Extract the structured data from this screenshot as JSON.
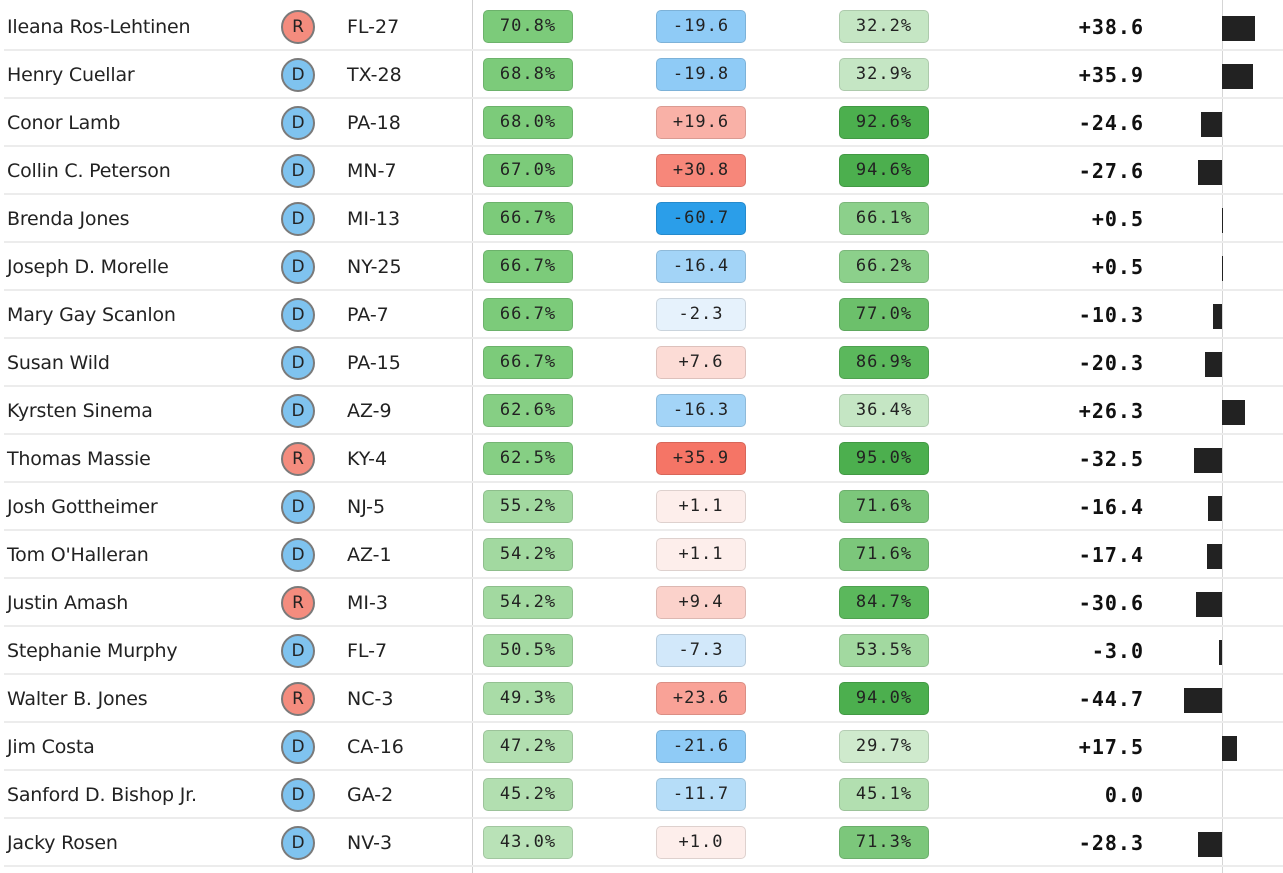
{
  "rows": [
    {
      "name": "Ileana Ros-Lehtinen",
      "party": "R",
      "district": "FL-27",
      "v1": "70.8%",
      "v2": "-19.6",
      "v3": "32.2%",
      "diff": "+38.6",
      "diff_value": 38.6,
      "c1": "#7ccb7a",
      "c2": "#8fcbf6",
      "c3": "#c5e6c4"
    },
    {
      "name": "Henry Cuellar",
      "party": "D",
      "district": "TX-28",
      "v1": "68.8%",
      "v2": "-19.8",
      "v3": "32.9%",
      "diff": "+35.9",
      "diff_value": 35.9,
      "c1": "#7ccb7a",
      "c2": "#8fcbf6",
      "c3": "#c5e6c4"
    },
    {
      "name": "Conor Lamb",
      "party": "D",
      "district": "PA-18",
      "v1": "68.0%",
      "v2": "+19.6",
      "v3": "92.6%",
      "diff": "-24.6",
      "diff_value": -24.6,
      "c1": "#7ccb7a",
      "c2": "#f9b1a7",
      "c3": "#4caf4e"
    },
    {
      "name": "Collin C. Peterson",
      "party": "D",
      "district": "MN-7",
      "v1": "67.0%",
      "v2": "+30.8",
      "v3": "94.6%",
      "diff": "-27.6",
      "diff_value": -27.6,
      "c1": "#7ccb7a",
      "c2": "#f7877a",
      "c3": "#4caf4e"
    },
    {
      "name": "Brenda Jones",
      "party": "D",
      "district": "MI-13",
      "v1": "66.7%",
      "v2": "-60.7",
      "v3": "66.1%",
      "diff": "+0.5",
      "diff_value": 0.5,
      "c1": "#7ccb7a",
      "c2": "#2b9ee9",
      "c3": "#8cd08b"
    },
    {
      "name": "Joseph D. Morelle",
      "party": "D",
      "district": "NY-25",
      "v1": "66.7%",
      "v2": "-16.4",
      "v3": "66.2%",
      "diff": "+0.5",
      "diff_value": 0.5,
      "c1": "#7ccb7a",
      "c2": "#a3d4f7",
      "c3": "#8cd08b"
    },
    {
      "name": "Mary Gay Scanlon",
      "party": "D",
      "district": "PA-7",
      "v1": "66.7%",
      "v2": "-2.3",
      "v3": "77.0%",
      "diff": "-10.3",
      "diff_value": -10.3,
      "c1": "#7ccb7a",
      "c2": "#e6f2fc",
      "c3": "#6cc06b"
    },
    {
      "name": "Susan Wild",
      "party": "D",
      "district": "PA-15",
      "v1": "66.7%",
      "v2": "+7.6",
      "v3": "86.9%",
      "diff": "-20.3",
      "diff_value": -20.3,
      "c1": "#7ccb7a",
      "c2": "#fcdcd6",
      "c3": "#5bb85c"
    },
    {
      "name": "Kyrsten Sinema",
      "party": "D",
      "district": "AZ-9",
      "v1": "62.6%",
      "v2": "-16.3",
      "v3": "36.4%",
      "diff": "+26.3",
      "diff_value": 26.3,
      "c1": "#86cf84",
      "c2": "#a3d4f7",
      "c3": "#c5e6c4"
    },
    {
      "name": "Thomas Massie",
      "party": "R",
      "district": "KY-4",
      "v1": "62.5%",
      "v2": "+35.9",
      "v3": "95.0%",
      "diff": "-32.5",
      "diff_value": -32.5,
      "c1": "#86cf84",
      "c2": "#f57566",
      "c3": "#4caf4e"
    },
    {
      "name": "Josh Gottheimer",
      "party": "D",
      "district": "NJ-5",
      "v1": "55.2%",
      "v2": "+1.1",
      "v3": "71.6%",
      "diff": "-16.4",
      "diff_value": -16.4,
      "c1": "#a2d9a0",
      "c2": "#fdeeeb",
      "c3": "#7cc77b"
    },
    {
      "name": "Tom O'Halleran",
      "party": "D",
      "district": "AZ-1",
      "v1": "54.2%",
      "v2": "+1.1",
      "v3": "71.6%",
      "diff": "-17.4",
      "diff_value": -17.4,
      "c1": "#a2d9a0",
      "c2": "#fdeeeb",
      "c3": "#7cc77b"
    },
    {
      "name": "Justin Amash",
      "party": "R",
      "district": "MI-3",
      "v1": "54.2%",
      "v2": "+9.4",
      "v3": "84.7%",
      "diff": "-30.6",
      "diff_value": -30.6,
      "c1": "#a2d9a0",
      "c2": "#fbd2cb",
      "c3": "#5bb85c"
    },
    {
      "name": "Stephanie Murphy",
      "party": "D",
      "district": "FL-7",
      "v1": "50.5%",
      "v2": "-7.3",
      "v3": "53.5%",
      "diff": "-3.0",
      "diff_value": -3.0,
      "c1": "#a2d9a0",
      "c2": "#d2e8fa",
      "c3": "#a2d9a0"
    },
    {
      "name": "Walter B. Jones",
      "party": "R",
      "district": "NC-3",
      "v1": "49.3%",
      "v2": "+23.6",
      "v3": "94.0%",
      "diff": "-44.7",
      "diff_value": -44.7,
      "c1": "#a9dca7",
      "c2": "#f9a297",
      "c3": "#4caf4e"
    },
    {
      "name": "Jim Costa",
      "party": "D",
      "district": "CA-16",
      "v1": "47.2%",
      "v2": "-21.6",
      "v3": "29.7%",
      "diff": "+17.5",
      "diff_value": 17.5,
      "c1": "#b2dfb0",
      "c2": "#8fcbf6",
      "c3": "#cfeacd"
    },
    {
      "name": "Sanford D. Bishop Jr.",
      "party": "D",
      "district": "GA-2",
      "v1": "45.2%",
      "v2": "-11.7",
      "v3": "45.1%",
      "diff": "0.0",
      "diff_value": 0.0,
      "c1": "#b2dfb0",
      "c2": "#b6ddf8",
      "c3": "#b2dfb0"
    },
    {
      "name": "Jacky Rosen",
      "party": "D",
      "district": "NV-3",
      "v1": "43.0%",
      "v2": "+1.0",
      "v3": "71.3%",
      "diff": "-28.3",
      "diff_value": -28.3,
      "c1": "#b9e2b7",
      "c2": "#fdeeeb",
      "c3": "#7cc77b"
    }
  ],
  "colors": {
    "rep": "#f48c7e",
    "dem": "#7fc3ef"
  }
}
